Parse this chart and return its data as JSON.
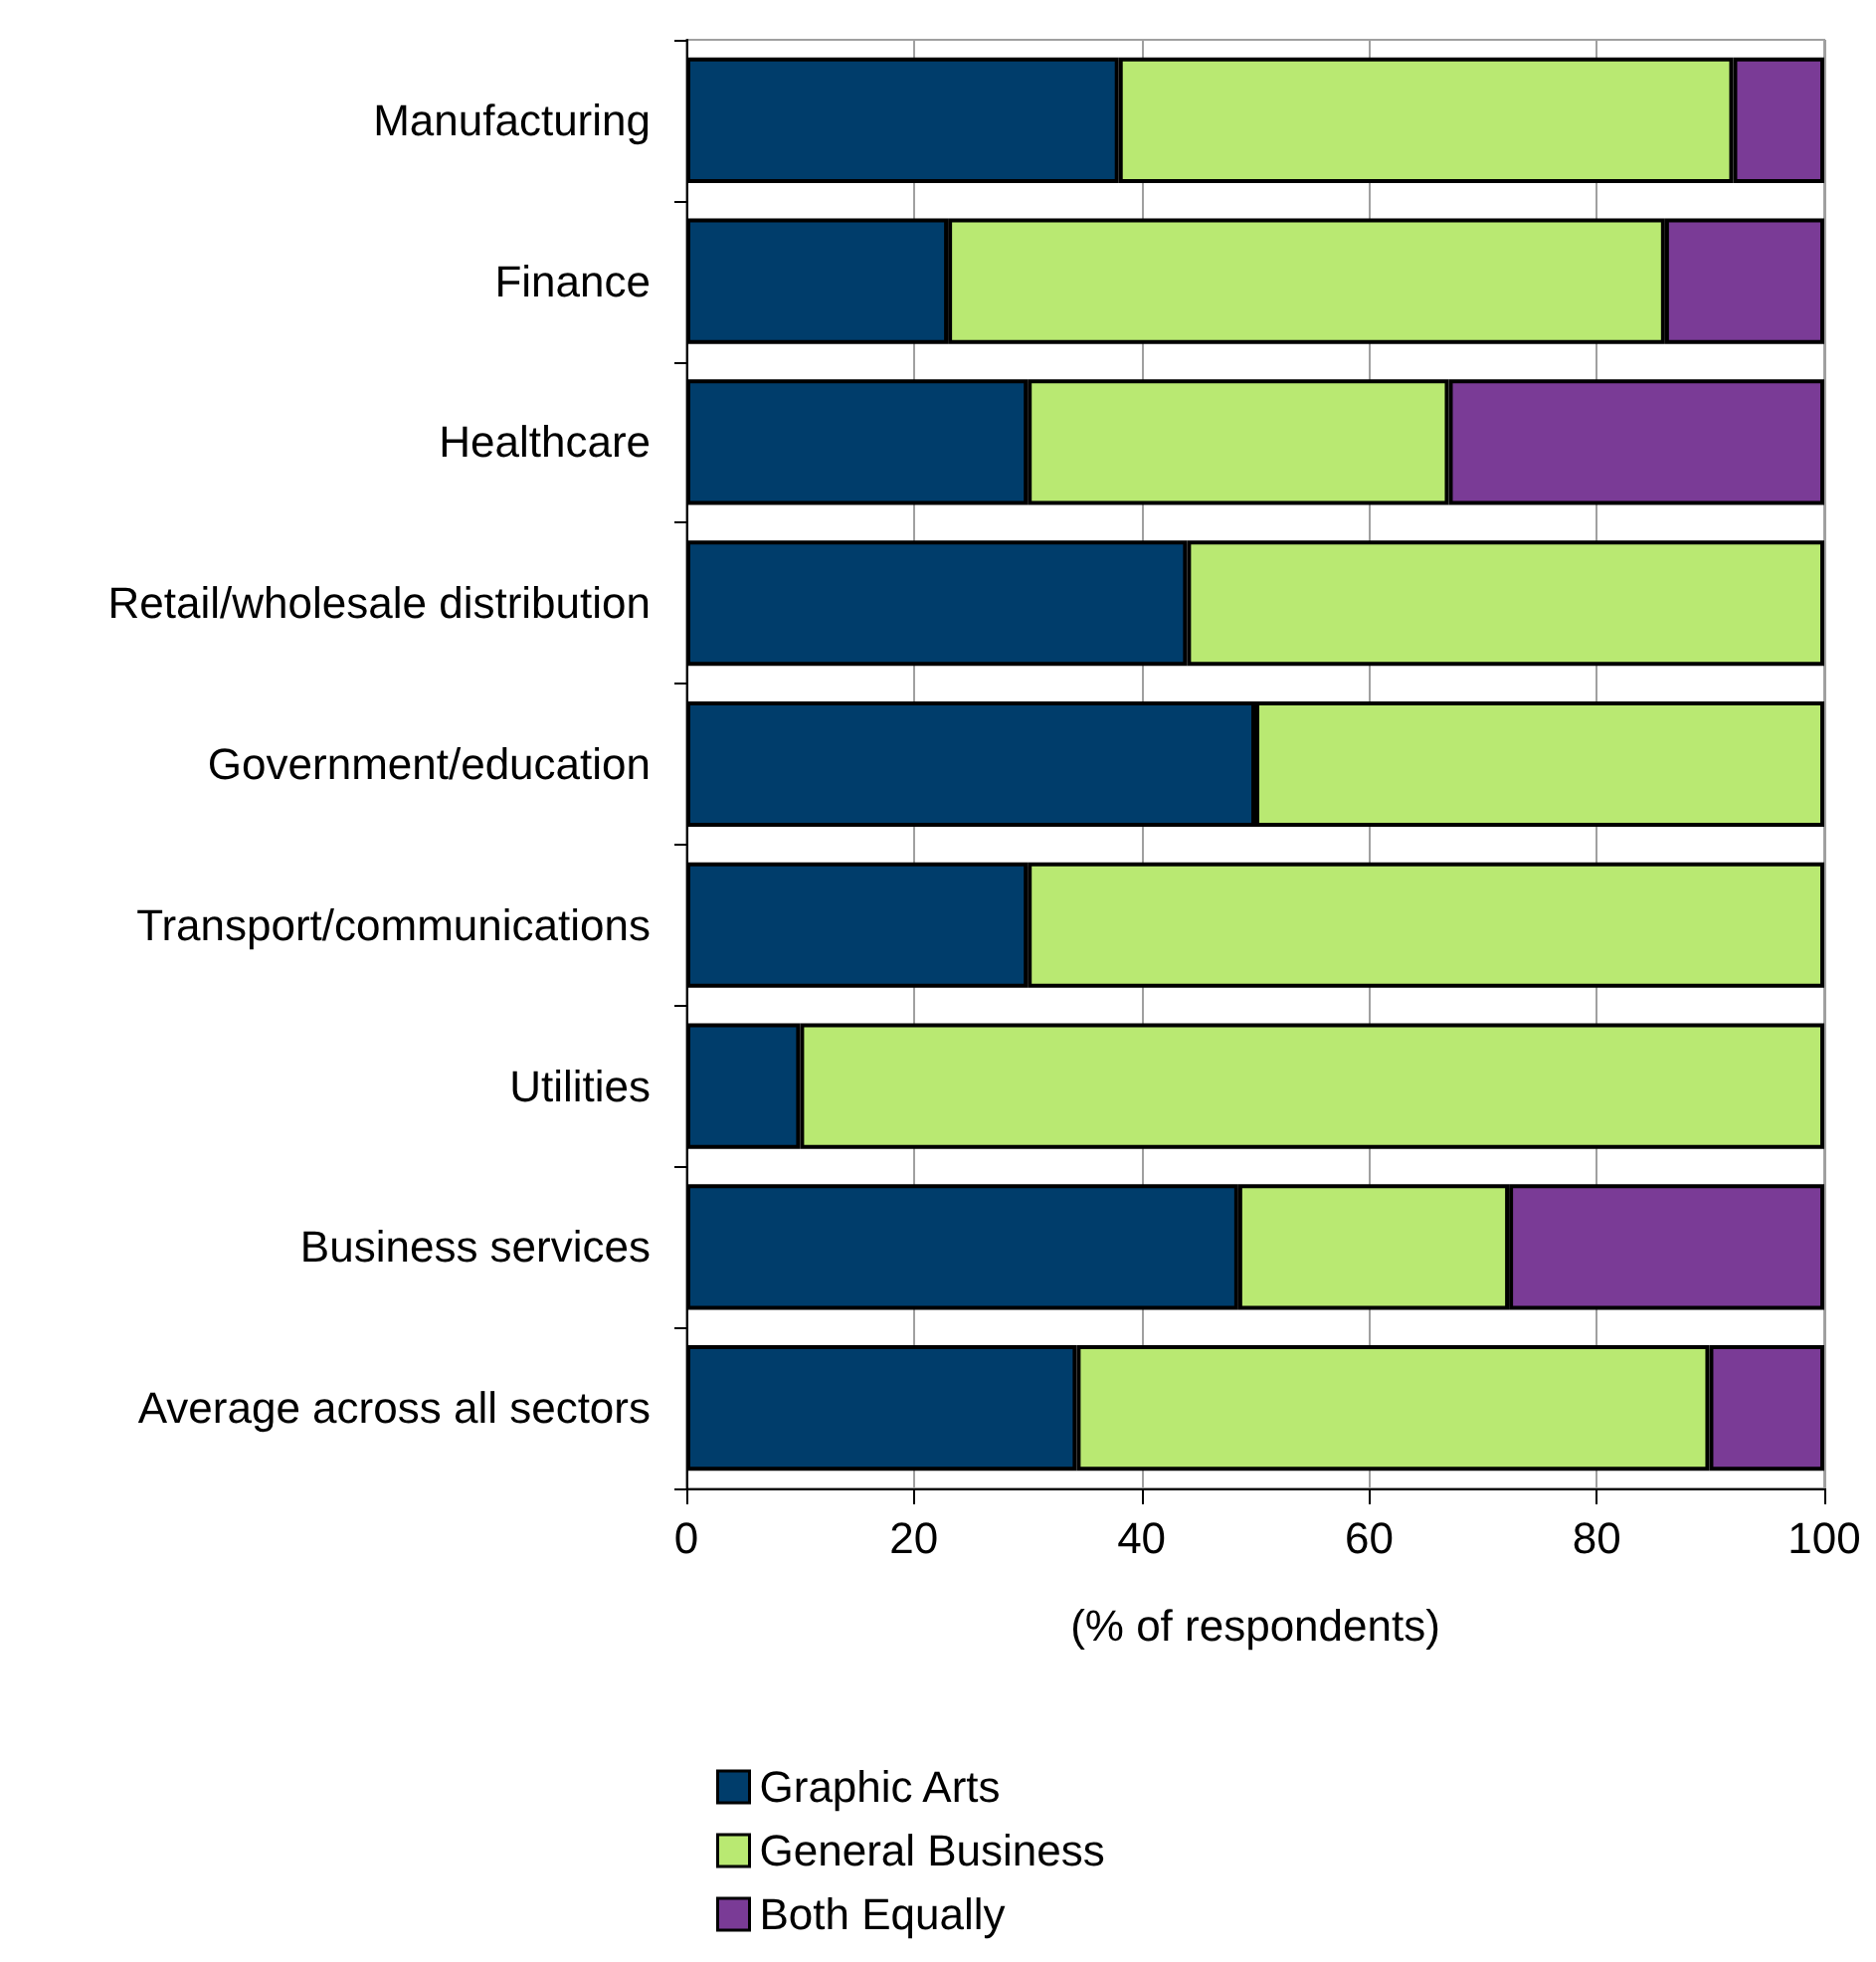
{
  "chart_data": {
    "type": "bar",
    "orientation": "horizontal",
    "stacked": true,
    "categories": [
      "Manufacturing",
      "Finance",
      "Healthcare",
      "Retail/wholesale distribution",
      "Government/education",
      "Transport/communications",
      "Utilities",
      "Business services",
      "Average across all sectors"
    ],
    "series": [
      {
        "name": "Graphic Arts",
        "color": "#003d6b",
        "values": [
          38,
          23,
          30,
          44,
          50,
          30,
          10,
          48.5,
          34.3
        ]
      },
      {
        "name": "General Business",
        "color": "#b9e972",
        "values": [
          54,
          63,
          37,
          56,
          50,
          70,
          90,
          23.8,
          55.6
        ]
      },
      {
        "name": "Both Equally",
        "color": "#7a3b96",
        "values": [
          8,
          14,
          33,
          null,
          null,
          null,
          null,
          27.7,
          10.1
        ]
      }
    ],
    "xlabel": "(% of respondents)",
    "xlim": [
      0,
      100
    ],
    "xticks": [
      0,
      20,
      40,
      60,
      80,
      100
    ],
    "grid": "x",
    "legend": "bottom"
  }
}
